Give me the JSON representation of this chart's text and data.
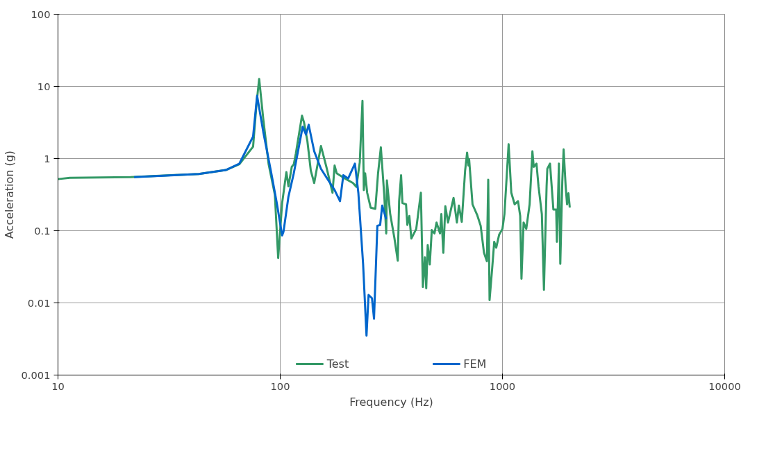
{
  "chart_data": {
    "type": "line",
    "xlabel": "Frequency (Hz)",
    "ylabel": "Acceleration (g)",
    "log": "xy",
    "xlim": [
      10,
      10000
    ],
    "xticks": [
      10,
      100,
      1000,
      10000
    ],
    "ylim": [
      0.001,
      100
    ],
    "yticks": [
      0.001,
      0.01,
      0.1,
      1,
      10,
      100
    ],
    "grid": true,
    "legend": "bottom",
    "marker": "none",
    "line_style": "solid",
    "series": [
      {
        "name": "Test",
        "color": "#339966",
        "x": [
          10,
          11.3,
          21.2,
          43.0,
          56.9,
          65.5,
          75.5,
          78.2,
          80.4,
          83.9,
          88.7,
          94.6,
          97.9,
          102,
          106.6,
          108.9,
          112.7,
          115.1,
          117.5,
          125.3,
          127.9,
          132.5,
          137.3,
          142.2,
          152.5,
          161.3,
          171.9,
          175.7,
          179.5,
          195.4,
          212.5,
          220.1,
          228,
          234.5,
          237.8,
          241.1,
          246.2,
          255.2,
          267.9,
          275.6,
          283.7,
          293.8,
          300,
          302,
          312.6,
          326.4,
          338,
          342.8,
          349.9,
          354.8,
          368.3,
          373.3,
          381.1,
          389.1,
          409.3,
          429.5,
          438.5,
          447.7,
          454,
          461,
          470.9,
          480.9,
          494.3,
          505.2,
          523.6,
          530.9,
          542,
          553.4,
          568.9,
          602.6,
          623.7,
          636.8,
          656.1,
          679.2,
          693.4,
          703.1,
          708,
          733.4,
          770.9,
          798,
          826,
          851.1,
          862.9,
          875,
          899.5,
          918.3,
          937.6,
          966.1,
          1000,
          1021,
          1066,
          1096,
          1135,
          1175,
          1202,
          1218,
          1245,
          1280,
          1325,
          1364,
          1383,
          1423,
          1453,
          1504,
          1537,
          1580,
          1592,
          1637,
          1695,
          1745,
          1758,
          1795,
          1821,
          1859,
          1885,
          1925,
          1953,
          1981,
          2009
        ],
        "values": [
          0.519,
          0.541,
          0.552,
          0.612,
          0.693,
          0.834,
          1.46,
          5.68,
          12.7,
          3.53,
          0.834,
          0.316,
          0.0419,
          0.242,
          0.651,
          0.413,
          0.768,
          0.834,
          1.16,
          3.92,
          3.19,
          1.75,
          0.679,
          0.458,
          1.49,
          0.768,
          0.336,
          0.8,
          0.625,
          0.53,
          0.458,
          0.405,
          0.887,
          6.3,
          0.366,
          0.625,
          0.336,
          0.209,
          0.201,
          0.625,
          1.43,
          0.316,
          0.0917,
          0.498,
          0.17,
          0.0794,
          0.0385,
          0.257,
          0.587,
          0.242,
          0.232,
          0.12,
          0.16,
          0.0778,
          0.106,
          0.336,
          0.0166,
          0.0428,
          0.0159,
          0.0632,
          0.0341,
          0.102,
          0.0917,
          0.13,
          0.0917,
          0.17,
          0.0494,
          0.218,
          0.13,
          0.285,
          0.13,
          0.223,
          0.133,
          0.679,
          1.21,
          0.8,
          0.984,
          0.232,
          0.163,
          0.117,
          0.0494,
          0.0378,
          0.508,
          0.0109,
          0.0307,
          0.0702,
          0.0582,
          0.0879,
          0.106,
          0.17,
          1.58,
          0.336,
          0.232,
          0.257,
          0.16,
          0.0216,
          0.13,
          0.106,
          0.232,
          1.26,
          0.768,
          0.851,
          0.413,
          0.17,
          0.0152,
          0.413,
          0.721,
          0.851,
          0.197,
          0.197,
          0.0702,
          0.851,
          0.0348,
          0.478,
          1.34,
          0.413,
          0.232,
          0.33,
          0.209
        ]
      },
      {
        "name": "FEM",
        "color": "#0066cc",
        "x": [
          22.0,
          43.0,
          56.9,
          65.5,
          75.5,
          78.7,
          83.9,
          91.2,
          96.5,
          102,
          103.5,
          108.9,
          115.1,
          126.2,
          130.6,
          134.3,
          142.2,
          152.5,
          175.7,
          185.8,
          192.3,
          202.2,
          216.8,
          224.7,
          236.0,
          244.5,
          249.8,
          258.8,
          264.3,
          273.6,
          281.6,
          287.7,
          300
        ],
        "values": [
          0.552,
          0.612,
          0.693,
          0.851,
          2.02,
          7.43,
          2.34,
          0.625,
          0.242,
          0.0861,
          0.0975,
          0.297,
          0.625,
          2.76,
          2.15,
          2.94,
          1.26,
          0.721,
          0.366,
          0.257,
          0.587,
          0.53,
          0.851,
          0.336,
          0.0348,
          0.00352,
          0.0129,
          0.0116,
          0.00603,
          0.117,
          0.12,
          0.223,
          0.144
        ]
      }
    ]
  }
}
